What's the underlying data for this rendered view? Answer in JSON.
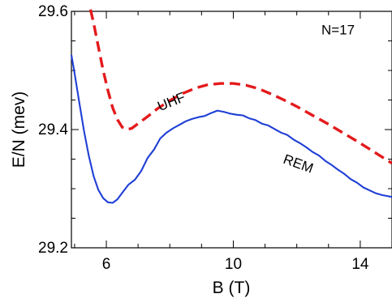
{
  "chart_data": {
    "type": "line",
    "title": "",
    "xlabel": "B (T)",
    "ylabel": "E/N (mev)",
    "xlim": [
      4.9,
      15.0
    ],
    "ylim": [
      29.2,
      29.6
    ],
    "xticks": [
      6,
      10,
      14
    ],
    "yticks": [
      29.2,
      29.4,
      29.6
    ],
    "xtick_labels": [
      "6",
      "10",
      "14"
    ],
    "ytick_labels": [
      "29.2",
      "29.4",
      "29.6"
    ],
    "grid": false,
    "annotations": [
      {
        "text": "N=17",
        "x": 13.3,
        "y": 29.561
      },
      {
        "text": "UHF",
        "x": 8.1,
        "y": 29.44
      },
      {
        "text": "REM",
        "x": 12.0,
        "y": 29.335
      }
    ],
    "series": [
      {
        "name": "UHF",
        "color": "#e41a1c",
        "style": "dashed",
        "x": [
          5.5,
          5.6,
          5.75,
          5.9,
          6.05,
          6.2,
          6.35,
          6.5,
          6.65,
          6.8,
          7.0,
          7.3,
          7.6,
          8.0,
          8.4,
          8.8,
          9.2,
          9.6,
          10.0,
          10.4,
          10.8,
          11.2,
          11.6,
          12.0,
          12.5,
          13.0,
          13.5,
          14.0,
          14.5,
          15.0
        ],
        "values": [
          29.603,
          29.58,
          29.54,
          29.5,
          29.466,
          29.437,
          29.417,
          29.404,
          29.4,
          29.402,
          29.41,
          29.422,
          29.435,
          29.449,
          29.461,
          29.47,
          29.476,
          29.478,
          29.478,
          29.475,
          29.469,
          29.46,
          29.45,
          29.439,
          29.424,
          29.409,
          29.393,
          29.377,
          29.36,
          29.343
        ]
      },
      {
        "name": "REM",
        "color": "#1f3fd6",
        "style": "solid",
        "x": [
          4.9,
          5.0,
          5.15,
          5.3,
          5.45,
          5.6,
          5.75,
          5.9,
          6.05,
          6.2,
          6.35,
          6.5,
          6.7,
          6.9,
          7.1,
          7.3,
          7.5,
          7.7,
          7.9,
          8.1,
          8.3,
          8.5,
          8.7,
          8.9,
          9.1,
          9.3,
          9.5,
          9.7,
          9.9,
          10.1,
          10.3,
          10.5,
          10.7,
          10.9,
          11.1,
          11.3,
          11.5,
          11.7,
          11.9,
          12.1,
          12.3,
          12.5,
          12.7,
          12.9,
          13.1,
          13.3,
          13.5,
          13.7,
          13.9,
          14.1,
          14.3,
          14.5,
          14.7,
          15.0
        ],
        "values": [
          29.526,
          29.495,
          29.445,
          29.397,
          29.355,
          29.321,
          29.298,
          29.284,
          29.277,
          29.276,
          29.282,
          29.293,
          29.307,
          29.315,
          29.33,
          29.352,
          29.366,
          29.385,
          29.395,
          29.402,
          29.408,
          29.414,
          29.418,
          29.421,
          29.423,
          29.428,
          29.432,
          29.43,
          29.427,
          29.425,
          29.424,
          29.419,
          29.416,
          29.41,
          29.407,
          29.401,
          29.395,
          29.391,
          29.383,
          29.377,
          29.37,
          29.362,
          29.356,
          29.347,
          29.34,
          29.332,
          29.325,
          29.316,
          29.31,
          29.302,
          29.297,
          29.292,
          29.289,
          29.286
        ]
      }
    ]
  }
}
